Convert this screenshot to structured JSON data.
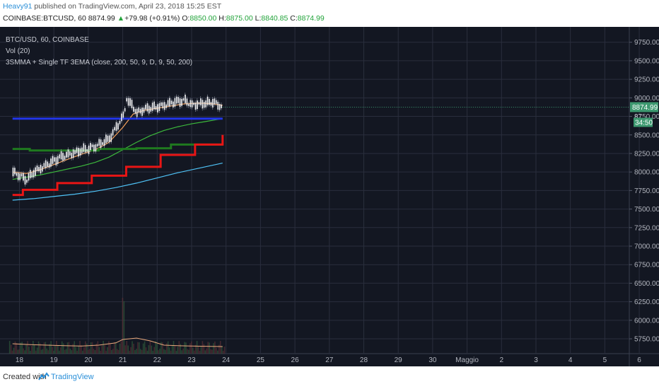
{
  "header": {
    "user": "Heavy91",
    "published_text": "published on TradingView.com, April 23, 2018 15:25 EST",
    "symbol": "COINBASE:BTCUSD, 60",
    "last": "8874.99",
    "arrow": "▲",
    "change": "+79.98 (+0.91%)",
    "o_label": "O:",
    "o_value": "8850.00",
    "h_label": "H:",
    "h_value": "8875.00",
    "l_label": "L:",
    "l_value": "8840.85",
    "c_label": "C:",
    "c_value": "8874.99"
  },
  "legend": {
    "line1": "BTC/USD, 60, COINBASE",
    "line2": "Vol (20)",
    "line3": "3SMMA + Single TF 3EMA (close, 200, 50, 9, D, 9, 50, 200)"
  },
  "footer": {
    "created_with": "Created with",
    "brand": "TradingView",
    "logo_icon": "tradingview-logo-icon"
  },
  "colors": {
    "background": "#131722",
    "grid": "#2a2e3d",
    "axis_text": "#b2b5be",
    "candle_up": "#ffffff",
    "candle_down": "#ffffff",
    "ema9": "#f7a35c",
    "ema50": "#3cb93c",
    "ema200": "#4fc3f7",
    "smma_d9": "#2236e8",
    "smma_d50": "#1f7a1f",
    "smma_d200": "#e81515",
    "volume_ma": "#e8a87c",
    "last_price_tag": "#3d9970"
  },
  "chart_data": {
    "type": "line",
    "title": "BTC/USD, 60, COINBASE",
    "ylim": [
      5550,
      9900
    ],
    "y_ticks": [
      "9750.00",
      "9500.00",
      "9250.00",
      "9000.00",
      "8750.00",
      "8500.00",
      "8250.00",
      "8000.00",
      "7750.00",
      "7500.00",
      "7250.00",
      "7000.00",
      "6750.00",
      "6500.00",
      "6250.00",
      "6000.00",
      "5750.00"
    ],
    "x_ticks": [
      "18",
      "19",
      "20",
      "21",
      "22",
      "23",
      "24",
      "25",
      "26",
      "27",
      "28",
      "29",
      "30",
      "Maggio",
      "2",
      "3",
      "4",
      "5",
      "6"
    ],
    "last_price_label": "8874.99",
    "countdown_label": "34:50",
    "secondary_price_label": "87",
    "price_series": {
      "name": "BTC/USD",
      "x": [
        17.8,
        18.0,
        18.2,
        18.4,
        18.6,
        18.8,
        19.0,
        19.2,
        19.4,
        19.6,
        19.8,
        20.0,
        20.2,
        20.4,
        20.6,
        20.8,
        21.0,
        21.1,
        21.2,
        21.4,
        21.6,
        21.8,
        22.0,
        22.2,
        22.4,
        22.6,
        22.8,
        23.0,
        23.2,
        23.4,
        23.6,
        23.8,
        23.9
      ],
      "y": [
        8000,
        7950,
        7900,
        8000,
        8050,
        8100,
        8150,
        8200,
        8230,
        8260,
        8300,
        8320,
        8350,
        8400,
        8450,
        8600,
        8750,
        8950,
        8930,
        8800,
        8850,
        8870,
        8880,
        8900,
        8930,
        8950,
        8960,
        8900,
        8920,
        8930,
        8950,
        8900,
        8875
      ]
    },
    "series": [
      {
        "name": "ema9",
        "color": "#f7a35c",
        "x": [
          17.8,
          18.2,
          18.6,
          19.0,
          19.4,
          19.8,
          20.2,
          20.6,
          21.0,
          21.3,
          21.6,
          22.0,
          22.4,
          22.8,
          23.2,
          23.6,
          23.9
        ],
        "y": [
          8000,
          7980,
          8030,
          8100,
          8170,
          8240,
          8300,
          8400,
          8600,
          8780,
          8830,
          8860,
          8890,
          8920,
          8930,
          8920,
          8900
        ]
      },
      {
        "name": "ema50",
        "color": "#3cb93c",
        "x": [
          17.8,
          18.2,
          18.6,
          19.0,
          19.4,
          19.8,
          20.2,
          20.6,
          21.0,
          21.4,
          21.8,
          22.2,
          22.6,
          23.0,
          23.4,
          23.9
        ],
        "y": [
          7900,
          7930,
          7960,
          8000,
          8040,
          8080,
          8130,
          8200,
          8300,
          8400,
          8490,
          8560,
          8610,
          8650,
          8680,
          8720
        ]
      },
      {
        "name": "ema200",
        "color": "#4fc3f7",
        "x": [
          17.8,
          18.4,
          19.0,
          19.6,
          20.2,
          20.8,
          21.4,
          22.0,
          22.6,
          23.2,
          23.9
        ],
        "y": [
          7620,
          7640,
          7670,
          7700,
          7740,
          7790,
          7850,
          7920,
          7990,
          8050,
          8120
        ]
      },
      {
        "name": "smma_d9",
        "color": "#2236e8",
        "x": [
          17.8,
          23.9
        ],
        "y": [
          8720,
          8720
        ]
      },
      {
        "name": "smma_d50",
        "color": "#1f7a1f",
        "x": [
          17.8,
          18.3,
          18.3,
          20.3,
          20.3,
          21.4,
          21.4,
          22.4,
          22.4,
          23.9
        ],
        "y": [
          8310,
          8310,
          8290,
          8290,
          8310,
          8310,
          8320,
          8320,
          8370,
          8370
        ]
      },
      {
        "name": "smma_d200",
        "color": "#e81515",
        "x": [
          17.8,
          18.1,
          18.1,
          19.1,
          19.1,
          20.1,
          20.1,
          21.1,
          21.1,
          22.1,
          22.1,
          23.1,
          23.1,
          23.9,
          23.9
        ],
        "y": [
          7690,
          7690,
          7760,
          7760,
          7850,
          7850,
          7950,
          7950,
          8070,
          8070,
          8230,
          8230,
          8370,
          8370,
          8500
        ]
      }
    ],
    "volume_ma": {
      "name": "Vol (20)",
      "x": [
        17.8,
        18.3,
        18.8,
        19.3,
        19.8,
        20.3,
        20.8,
        21.0,
        21.4,
        21.8,
        22.2,
        22.6,
        23.0,
        23.4,
        23.9
      ],
      "y": [
        0.35,
        0.32,
        0.3,
        0.28,
        0.27,
        0.3,
        0.38,
        0.5,
        0.55,
        0.45,
        0.3,
        0.28,
        0.27,
        0.26,
        0.25
      ]
    }
  }
}
